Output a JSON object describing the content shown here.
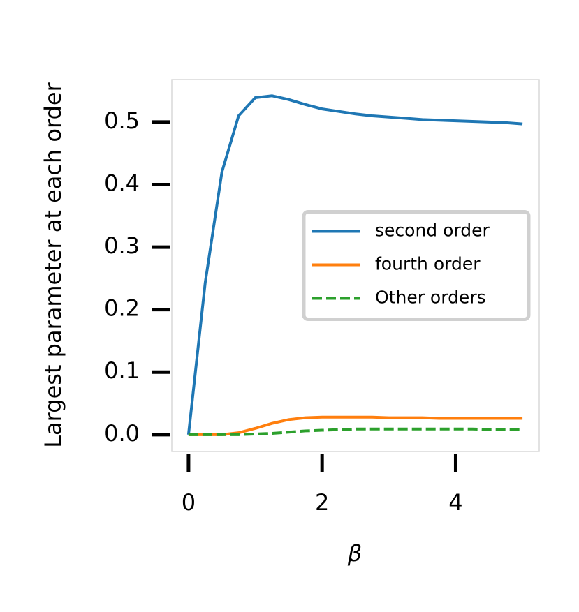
{
  "chart_data": {
    "type": "line",
    "xlabel": "β",
    "ylabel": "Largest parameter at each order",
    "x": [
      0,
      0.25,
      0.5,
      0.75,
      1,
      1.25,
      1.5,
      1.75,
      2,
      2.25,
      2.5,
      2.75,
      3,
      3.25,
      3.5,
      3.75,
      4,
      4.25,
      4.5,
      4.75,
      5
    ],
    "series": [
      {
        "name": "second order",
        "color": "#1f77b4",
        "linestyle": "solid",
        "values": [
          0,
          0.243,
          0.42,
          0.51,
          0.539,
          0.542,
          0.536,
          0.528,
          0.521,
          0.517,
          0.513,
          0.51,
          0.508,
          0.506,
          0.504,
          0.503,
          0.502,
          0.501,
          0.5,
          0.499,
          0.497
        ]
      },
      {
        "name": "fourth order",
        "color": "#ff7f0e",
        "linestyle": "solid",
        "values": [
          0,
          0,
          0,
          0.003,
          0.01,
          0.018,
          0.024,
          0.027,
          0.028,
          0.028,
          0.028,
          0.028,
          0.027,
          0.027,
          0.027,
          0.026,
          0.026,
          0.026,
          0.026,
          0.026,
          0.026
        ]
      },
      {
        "name": "Other orders",
        "color": "#2ca02c",
        "linestyle": "dashed",
        "values": [
          0,
          0,
          0,
          0,
          0.001,
          0.002,
          0.004,
          0.006,
          0.007,
          0.008,
          0.009,
          0.009,
          0.009,
          0.009,
          0.009,
          0.009,
          0.009,
          0.009,
          0.008,
          0.008,
          0.008
        ]
      }
    ],
    "xlim": [
      -0.25,
      5.25
    ],
    "xticks": [
      0,
      2,
      4
    ],
    "ylim": [
      -0.027,
      0.568
    ],
    "yticks": [
      {
        "value": 0,
        "label": "0.0"
      },
      0.1,
      0.2,
      0.3,
      0.4,
      0.5
    ],
    "legend": "center right"
  }
}
